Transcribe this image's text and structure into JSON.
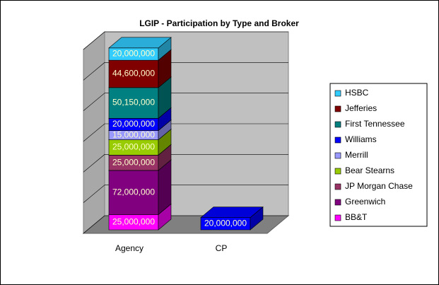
{
  "chart_data": {
    "type": "bar3d_stacked",
    "title": "LGIP - Participation by Type and Broker",
    "categories": [
      "Agency",
      "CP"
    ],
    "series": [
      {
        "name": "BB&T",
        "color": "#ff00ff",
        "values": [
          25000000,
          null
        ],
        "value_labels": [
          "25,000,000",
          null
        ]
      },
      {
        "name": "Greenwich",
        "color": "#800080",
        "values": [
          72000000,
          null
        ],
        "value_labels": [
          "72,000,000",
          null
        ]
      },
      {
        "name": "JP Morgan Chase",
        "color": "#993366",
        "values": [
          25000000,
          null
        ],
        "value_labels": [
          "25,000,000",
          null
        ]
      },
      {
        "name": "Bear Stearns",
        "color": "#99cc00",
        "values": [
          25000000,
          null
        ],
        "value_labels": [
          "25,000,000",
          null
        ]
      },
      {
        "name": "Merrill",
        "color": "#9999ff",
        "values": [
          15000000,
          null
        ],
        "value_labels": [
          "15,000,000",
          null
        ]
      },
      {
        "name": "Williams",
        "color": "#0000ff",
        "values": [
          20000000,
          20000000
        ],
        "value_labels": [
          "20,000,000",
          "20,000,000"
        ]
      },
      {
        "name": "First Tennessee",
        "color": "#008080",
        "values": [
          50150000,
          null
        ],
        "value_labels": [
          "50,150,000",
          null
        ]
      },
      {
        "name": "Jefferies",
        "color": "#800000",
        "values": [
          44600000,
          null
        ],
        "value_labels": [
          "44,600,000",
          null
        ]
      },
      {
        "name": "HSBC",
        "color": "#33ccff",
        "values": [
          20000000,
          null
        ],
        "value_labels": [
          "20,000,000",
          null
        ]
      }
    ],
    "ylim": [
      0,
      300000000
    ],
    "yticks": [
      0,
      50000000,
      100000000,
      150000000,
      200000000,
      250000000,
      300000000
    ],
    "grid": true,
    "legend": "right"
  }
}
